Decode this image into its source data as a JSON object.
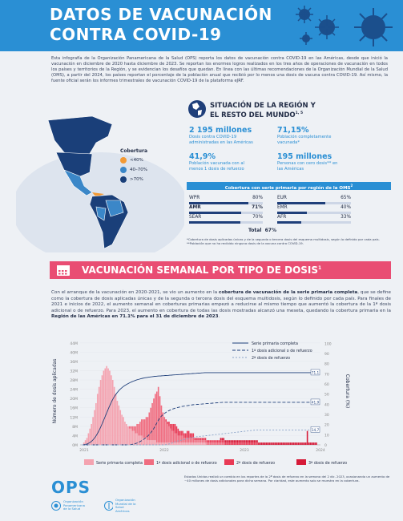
{
  "header": {
    "title_line1": "DATOS DE VACUNACIÓN",
    "title_line2": "CONTRA COVID-19"
  },
  "intro": "Esta infografía de la Organización Panamericana de la Salud (OPS) reporta los datos de vacunación contra COVID-19 en las Américas, desde que inició la vacunación en diciembre de 2020 hasta diciembre de 2023. Se reportan los enormes logros realizados en los tres años de operaciones de vacunación en todos los países y territorios de la Región, y se evidencian los desafíos que quedan. En línea con las últimas recomendaciones de la Organización Mundial de la Salud (OMS), a partir del 2024, los países reportan el porcentaje de la población anual que recibió por lo menos una dosis de vacuna contra COVID-19. Así mismo, la fuente oficial serán los informes trimestrales de vacunación COVID-19 de la plataforma eJRF.",
  "map_legend": {
    "title": "Cobertura",
    "items": [
      {
        "label": "<40%",
        "color": "#f39a34"
      },
      {
        "label": "40–70%",
        "color": "#3b87c8"
      },
      {
        "label": ">70%",
        "color": "#1a3f79"
      }
    ]
  },
  "situation": {
    "title_line1": "SITUACIÓN DE LA REGIÓN Y",
    "title_line2": "EL RESTO DEL MUNDO",
    "title_sup": "1, 5",
    "stats": [
      {
        "value": "2 195 millones",
        "desc_line1": "Dosis contra COVID-19",
        "desc_line2": "administradas en las Américas"
      },
      {
        "value": "71,15%",
        "desc_line1": "Población completamente",
        "desc_line2": "vacunada*"
      },
      {
        "value": "41,9%",
        "desc_line1": "Población vacunada con al",
        "desc_line2": "menos 1 dosis de refuerzo"
      },
      {
        "value": "195 millones",
        "desc_line1": "Personas con cero dosis** en",
        "desc_line2": "las Américas"
      }
    ],
    "coverage_title": "Cobertura con serie primaria por región de la OMS",
    "coverage_sup": "2",
    "regions": [
      {
        "name": "WPR",
        "pct": "80%",
        "value": 80,
        "bold": false
      },
      {
        "name": "AMR",
        "pct": "71%",
        "value": 71,
        "bold": true
      },
      {
        "name": "SEAR",
        "pct": "70%",
        "value": 70,
        "bold": false
      },
      {
        "name": "EUR",
        "pct": "65%",
        "value": 65,
        "bold": false
      },
      {
        "name": "EMR",
        "pct": "40%",
        "value": 40,
        "bold": false
      },
      {
        "name": "AFR",
        "pct": "33%",
        "value": 33,
        "bold": false
      }
    ],
    "total_label": "Total",
    "total_value": "67%",
    "note1": "*Cobertura de dosis aplicadas únicas y de la segunda o tercera dosis del esquema multidosis, según lo definido por cada país.",
    "note2": "**Población que no ha recibido ninguna dosis de la vacuna contra COVID-19."
  },
  "section2": {
    "title": "VACUNACIÓN SEMANAL POR TIPO DE DOSIS",
    "sup": "1"
  },
  "paragraph": {
    "p1": "Con el arranque de la vacunación en 2020-2021, se vio un aumento en la ",
    "b1": "cobertura de vacunación de la serie primaria completa",
    "p2": ", que se define como la cobertura de dosis aplicadas únicas y de la segunda o tercera dosis del esquema multidosis, según lo definido por cada país. Para finales de 2021 e inicios de 2022, el aumento semanal en coberturas primarias empezó a reducirse al mismo tiempo que aumentó la cobertura de la 1ª dosis adicional o de refuerzo. Para 2023, el aumento en cobertura de todas las dosis mostradas alcanzó una meseta, quedando la cobertura primaria en la ",
    "b2": "Región de las Américas en 71.1% para el 31 de diciembre de 2023",
    "p3": "."
  },
  "chart_data": {
    "type": "bar",
    "ylabel": "Número de dosis aplicadas",
    "y2label": "Cobertura (%)",
    "y_ticks": [
      "0M",
      "4M",
      "8M",
      "12M",
      "16M",
      "20M",
      "24M",
      "28M",
      "32M",
      "36M",
      "40M",
      "44M"
    ],
    "y2_ticks": [
      "0",
      "10",
      "20",
      "30",
      "40",
      "50",
      "60",
      "70",
      "80",
      "90",
      "100"
    ],
    "x_ticks": [
      "2021",
      "2022",
      "2023",
      "2024"
    ],
    "ylim": [
      0,
      46
    ],
    "y2lim": [
      0,
      105
    ],
    "series": [
      {
        "name": "Serie primaria completa",
        "color": "#f4a3b0"
      },
      {
        "name": "1ª dosis adicional o de refuerzo",
        "color": "#f06d80"
      },
      {
        "name": "2ª dosis de refuerzo",
        "color": "#e93a55"
      },
      {
        "name": "3ª dosis de refuerzo",
        "color": "#d61a38"
      }
    ],
    "line_legend": [
      "Serie primaria completa",
      "1ª dosis adicional o de refuerzo",
      "2ª dosis de refuerzo"
    ],
    "end_labels": [
      "71,1",
      "41,9",
      "14,7"
    ],
    "end_values": [
      71.1,
      41.9,
      14.7
    ],
    "weekly_primary": [
      0,
      1,
      2,
      3,
      5,
      7,
      9,
      12,
      15,
      18,
      22,
      25,
      28,
      30,
      32,
      33,
      34,
      33,
      32,
      30,
      28,
      25,
      22,
      19,
      17,
      15,
      13,
      12,
      10,
      9,
      8,
      7,
      7,
      6,
      6,
      5,
      5,
      4,
      4,
      4,
      3,
      3,
      3,
      2,
      2,
      2,
      2,
      2,
      2,
      1,
      1,
      1,
      1,
      1,
      1,
      1,
      1,
      1,
      1,
      1,
      1,
      1,
      1,
      1,
      1,
      1,
      1,
      1,
      1,
      1,
      1,
      1,
      1,
      1,
      1,
      1,
      1,
      1,
      1,
      1,
      1,
      1,
      0,
      0,
      0,
      0,
      0,
      0,
      0,
      0,
      0,
      0,
      0,
      0,
      0,
      0,
      0,
      0,
      0,
      0,
      0,
      0,
      0,
      0,
      0,
      0,
      0,
      0,
      0,
      0,
      0,
      0,
      0,
      0,
      0,
      0,
      0,
      0,
      0,
      0,
      0,
      0,
      0,
      0,
      0,
      0,
      0,
      0,
      0,
      0,
      0,
      0,
      0,
      0,
      0,
      0,
      0,
      0,
      0,
      0,
      0,
      0,
      0,
      0,
      0,
      0,
      0,
      0,
      0,
      0,
      0,
      0,
      0,
      0,
      0,
      0
    ],
    "weekly_booster1": [
      0,
      0,
      0,
      0,
      0,
      0,
      0,
      0,
      0,
      0,
      0,
      0,
      0,
      0,
      0,
      0,
      0,
      0,
      0,
      0,
      0,
      0,
      0,
      0,
      0,
      0,
      0,
      0,
      0,
      0,
      0,
      1,
      1,
      2,
      2,
      3,
      4,
      5,
      6,
      7,
      8,
      8,
      9,
      10,
      12,
      14,
      16,
      18,
      20,
      22,
      24,
      20,
      16,
      13,
      11,
      9,
      8,
      7,
      6,
      5,
      5,
      4,
      4,
      3,
      3,
      3,
      3,
      2,
      2,
      2,
      2,
      2,
      2,
      2,
      1,
      1,
      1,
      1,
      1,
      1,
      1,
      1,
      1,
      1,
      1,
      1,
      1,
      1,
      1,
      1,
      1,
      1,
      1,
      1,
      0,
      0,
      0,
      0,
      0,
      0,
      0,
      0,
      0,
      0,
      0,
      0,
      0,
      0,
      0,
      0,
      0,
      0,
      0,
      0,
      0,
      0,
      0,
      0,
      0,
      0,
      0,
      0,
      0,
      0,
      0,
      0,
      0,
      0,
      0,
      0,
      0,
      0,
      0,
      0,
      0,
      0,
      0,
      0,
      0,
      0,
      0,
      0,
      0,
      0,
      0,
      0,
      0,
      0,
      0,
      0,
      0,
      0,
      0,
      0,
      0,
      0
    ],
    "weekly_booster2": [
      0,
      0,
      0,
      0,
      0,
      0,
      0,
      0,
      0,
      0,
      0,
      0,
      0,
      0,
      0,
      0,
      0,
      0,
      0,
      0,
      0,
      0,
      0,
      0,
      0,
      0,
      0,
      0,
      0,
      0,
      0,
      0,
      0,
      0,
      0,
      0,
      0,
      0,
      0,
      0,
      0,
      0,
      0,
      0,
      0,
      0,
      0,
      0,
      0,
      0,
      0,
      0,
      0,
      0,
      0,
      1,
      1,
      2,
      2,
      3,
      3,
      4,
      3,
      3,
      2,
      2,
      2,
      2,
      2,
      3,
      3,
      2,
      2,
      2,
      1,
      1,
      1,
      1,
      1,
      1,
      1,
      1,
      1,
      1,
      1,
      1,
      1,
      1,
      1,
      1,
      1,
      1,
      1,
      1,
      1,
      1,
      1,
      1,
      1,
      1,
      1,
      1,
      1,
      1,
      1,
      1,
      1,
      1,
      1,
      1,
      1,
      1,
      1,
      1,
      1,
      1,
      0,
      0,
      0,
      0,
      0,
      0,
      0,
      0,
      0,
      0,
      0,
      0,
      0,
      0,
      0,
      0,
      0,
      0,
      0,
      0,
      0,
      0,
      0,
      0,
      0,
      0,
      0,
      0,
      0,
      0,
      0,
      0,
      0,
      0,
      0,
      0,
      0,
      0,
      0,
      0,
      0
    ],
    "weekly_booster3": [
      0,
      0,
      0,
      0,
      0,
      0,
      0,
      0,
      0,
      0,
      0,
      0,
      0,
      0,
      0,
      0,
      0,
      0,
      0,
      0,
      0,
      0,
      0,
      0,
      0,
      0,
      0,
      0,
      0,
      0,
      0,
      0,
      0,
      0,
      0,
      0,
      0,
      0,
      0,
      0,
      0,
      0,
      0,
      0,
      0,
      0,
      0,
      0,
      0,
      0,
      0,
      0,
      0,
      0,
      0,
      0,
      0,
      0,
      0,
      0,
      0,
      0,
      0,
      0,
      0,
      0,
      0,
      0,
      0,
      0,
      0,
      0,
      0,
      0,
      0,
      0,
      0,
      0,
      0,
      0,
      0,
      0,
      0,
      0,
      0,
      0,
      0,
      0,
      0,
      0,
      0,
      1,
      1,
      1,
      1,
      1,
      1,
      1,
      1,
      1,
      1,
      1,
      1,
      1,
      1,
      1,
      1,
      1,
      1,
      1,
      1,
      1,
      1,
      1,
      1,
      1,
      1,
      1,
      1,
      1,
      1,
      1,
      1,
      1,
      1,
      1,
      1,
      1,
      1,
      1,
      1,
      1,
      1,
      1,
      1,
      1,
      1,
      1,
      1,
      1,
      1,
      1,
      1,
      1,
      1,
      1,
      1,
      1,
      6,
      1,
      1,
      1,
      1,
      1,
      1
    ]
  },
  "footnote": "Estados Unidos realizó un cambio en los reportes de la 2ª dosis de refuerzo en la semana del 2 dic. 2023, ocasionando un aumento de ~40 millones de dosis adicionales para dicha semana. Por claridad, este aumento solo se muestra en la cobertura.",
  "footer": {
    "ops": "OPS",
    "org1_line1": "Organización",
    "org1_line2": "Panamericana",
    "org1_line3": "de la Salud",
    "org2_line1": "Organización",
    "org2_line2": "Mundial de la Salud",
    "org2_line3": "Américas"
  }
}
